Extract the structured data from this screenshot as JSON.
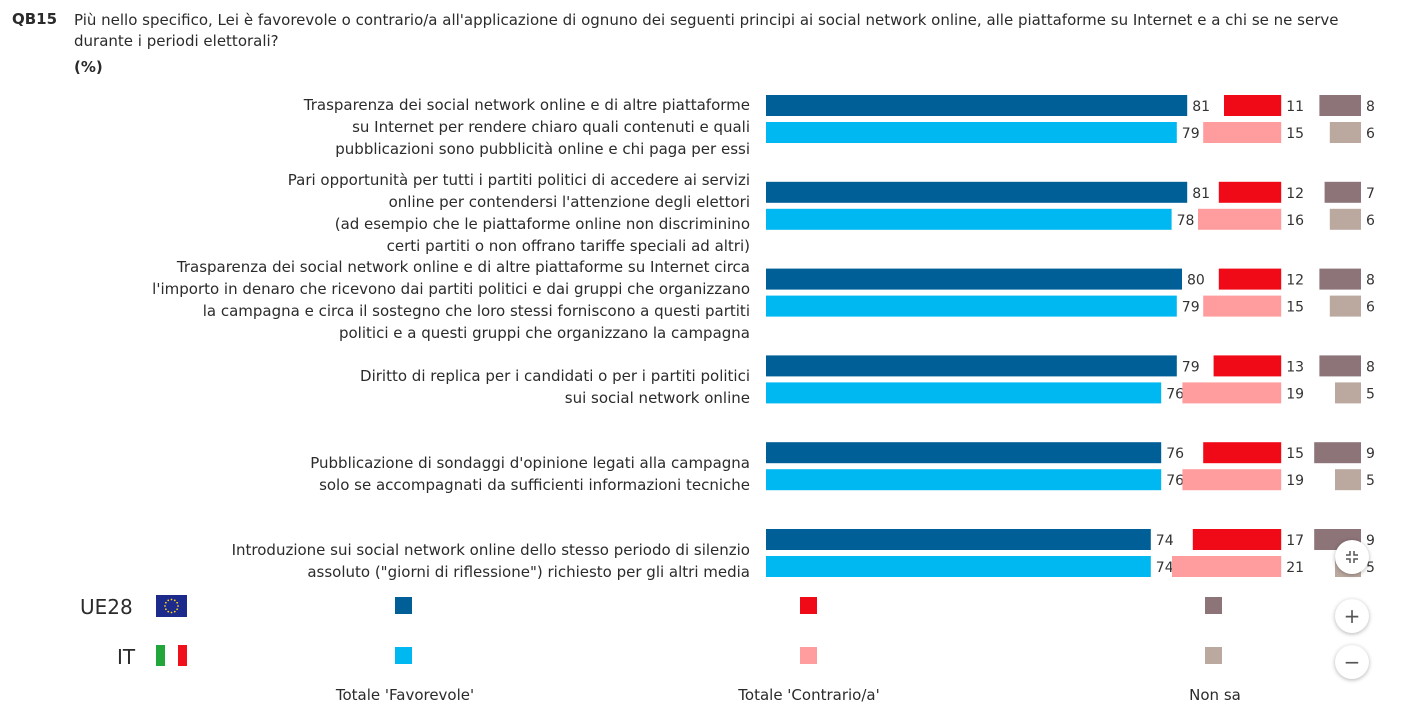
{
  "question": {
    "code": "QB15",
    "text": "Più nello specifico, Lei è favorevole o contrario/a all'applicazione di ognuno dei seguenti principi ai social network online, alle piattaforme su Internet e a chi se ne serve durante i periodi elettorali?",
    "unit": "(%)"
  },
  "chart_data": {
    "type": "bar",
    "orientation": "horizontal-stacked-groups",
    "categories": [
      [
        "Trasparenza dei social network online e di altre piattaforme",
        "su Internet per rendere chiaro quali contenuti e quali",
        "pubblicazioni sono pubblicità online e chi paga per essi"
      ],
      [
        "Pari opportunità per tutti i partiti politici di accedere ai servizi",
        "online per contendersi l'attenzione degli elettori",
        "(ad esempio che le piattaforme online non discriminino",
        "certi partiti o non offrano tariffe speciali ad altri)"
      ],
      [
        "Trasparenza dei social network online e di altre piattaforme su Internet circa",
        "l'importo in denaro che ricevono dai partiti politici e dai gruppi che organizzano",
        "la campagna e circa il sostegno che loro stessi forniscono a questi partiti",
        "politici e a questi gruppi che organizzano la campagna"
      ],
      [
        "Diritto di replica per i candidati o per i partiti politici",
        "sui social network online"
      ],
      [
        "Pubblicazione di sondaggi d'opinione legati alla campagna",
        "solo se accompagnati da sufficienti informazioni tecniche"
      ],
      [
        "Introduzione sui social network online dello stesso periodo di silenzio",
        "assoluto (\"giorni di riflessione\") richiesto per gli altri media"
      ]
    ],
    "series": [
      {
        "name": "UE28",
        "favorevole": [
          81,
          81,
          80,
          79,
          76,
          74
        ],
        "contrario": [
          11,
          12,
          12,
          13,
          15,
          17
        ],
        "non_sa": [
          8,
          7,
          8,
          8,
          9,
          9
        ]
      },
      {
        "name": "IT",
        "favorevole": [
          79,
          78,
          79,
          76,
          76,
          74
        ],
        "contrario": [
          15,
          16,
          15,
          19,
          19,
          21
        ],
        "non_sa": [
          6,
          6,
          6,
          5,
          5,
          5
        ]
      }
    ],
    "measures": [
      "Totale 'Favorevole'",
      "Totale 'Contrario/a'",
      "Non sa"
    ],
    "colors": {
      "UE28": {
        "favorevole": "#005f96",
        "contrario": "#f00a18",
        "non_sa": "#8c7478"
      },
      "IT": {
        "favorevole": "#00b8f1",
        "contrario": "#ff9c9d",
        "non_sa": "#bba9a0"
      }
    }
  },
  "legend": {
    "rows": [
      {
        "name": "UE28",
        "flag": "eu-flag-icon"
      },
      {
        "name": "IT",
        "flag": "italy-flag-icon"
      }
    ],
    "columns": [
      "Totale 'Favorevole'",
      "Totale 'Contrario/a'",
      "Non sa"
    ]
  },
  "controls": {
    "collapse_icon": "collapse-icon",
    "zoom_in_label": "+",
    "zoom_out_label": "−"
  }
}
